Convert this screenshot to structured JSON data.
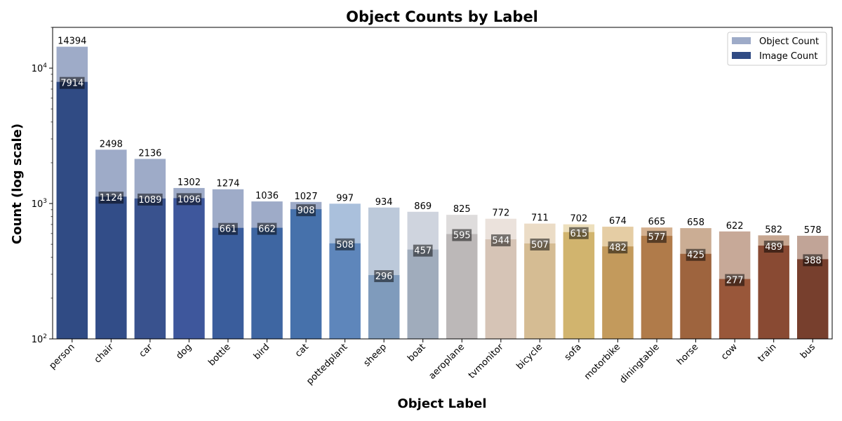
{
  "chart_data": {
    "type": "bar",
    "title": "Object Counts by Label",
    "xlabel": "Object Label",
    "ylabel": "Count (log scale)",
    "yscale": "log",
    "ylim": [
      100,
      20000
    ],
    "y_ticks": [
      {
        "value": 100,
        "base": "10",
        "exp": "2"
      },
      {
        "value": 1000,
        "base": "10",
        "exp": "3"
      },
      {
        "value": 10000,
        "base": "10",
        "exp": "4"
      }
    ],
    "legend_position": "top-right",
    "categories": [
      "person",
      "chair",
      "car",
      "dog",
      "bottle",
      "bird",
      "cat",
      "pottedplant",
      "sheep",
      "boat",
      "aeroplane",
      "tvmonitor",
      "bicycle",
      "sofa",
      "motorbike",
      "diningtable",
      "horse",
      "cow",
      "train",
      "bus"
    ],
    "series": [
      {
        "name": "Object Count",
        "values": [
          14394,
          2498,
          2136,
          1302,
          1274,
          1036,
          1027,
          997,
          934,
          869,
          825,
          772,
          711,
          702,
          674,
          665,
          658,
          622,
          582,
          578
        ],
        "labels": [
          "14394",
          "2498",
          "2136",
          "1302",
          "1274",
          "1036",
          "1027",
          "997",
          "934",
          "869",
          "825",
          "772",
          "711",
          "702",
          "674",
          "665",
          "658",
          "622",
          "582",
          "578"
        ],
        "colors": [
          "#9eabc8",
          "#9eabc8",
          "#9eabc8",
          "#9eabc8",
          "#9eabc8",
          "#9eabc8",
          "#9eabc8",
          "#aac0dc",
          "#bcc9da",
          "#cfd4de",
          "#dedcdc",
          "#ebe2dc",
          "#ebdcc6",
          "#eddfbc",
          "#e5cda4",
          "#d4b08f",
          "#cbad94",
          "#c7a998",
          "#c7a791",
          "#c1a497"
        ]
      },
      {
        "name": "Image Count",
        "values": [
          7914,
          1124,
          1089,
          1096,
          661,
          662,
          908,
          508,
          296,
          457,
          595,
          544,
          507,
          615,
          482,
          577,
          425,
          277,
          489,
          388
        ],
        "labels": [
          "7914",
          "1124",
          "1089",
          "1096",
          "661",
          "662",
          "908",
          "508",
          "296",
          "457",
          "595",
          "544",
          "507",
          "615",
          "482",
          "577",
          "425",
          "277",
          "489",
          "388"
        ],
        "colors": [
          "#304b84",
          "#324d88",
          "#39528e",
          "#3e579c",
          "#3a5d9c",
          "#3e66a2",
          "#4671ab",
          "#5e86bb",
          "#7f9bbc",
          "#a0acbc",
          "#bcb8b8",
          "#d6c4b6",
          "#d5bc93",
          "#d1b46e",
          "#c39a5c",
          "#b07b4a",
          "#9e643e",
          "#99573a",
          "#894a33",
          "#773f2d"
        ]
      }
    ]
  }
}
